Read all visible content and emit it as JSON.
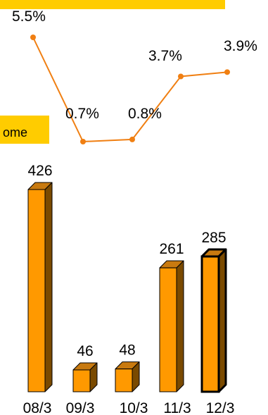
{
  "chart_data": [
    {
      "type": "line",
      "categories": [
        "08/3",
        "09/3",
        "10/3",
        "11/3",
        "12/3"
      ],
      "values": [
        5.5,
        0.7,
        0.8,
        3.7,
        3.9
      ],
      "labels": [
        "5.5%",
        "0.7%",
        "0.8%",
        "3.7%",
        "3.9%"
      ],
      "color": "#f07f12",
      "grid": false
    },
    {
      "type": "bar",
      "categories": [
        "08/3",
        "09/3",
        "10/3",
        "11/3",
        "12/3"
      ],
      "values": [
        426,
        46,
        48,
        261,
        285
      ],
      "labels": [
        "426",
        "46",
        "48",
        "261",
        "285"
      ],
      "highlight_index": 4,
      "colors": {
        "front": "#ff9900",
        "top": "#c87a10",
        "side": "#7a4a00"
      },
      "grid": false
    }
  ],
  "legend": {
    "text": "ome",
    "color": "#ffcc00"
  },
  "top_band_color": "#ffcc00"
}
